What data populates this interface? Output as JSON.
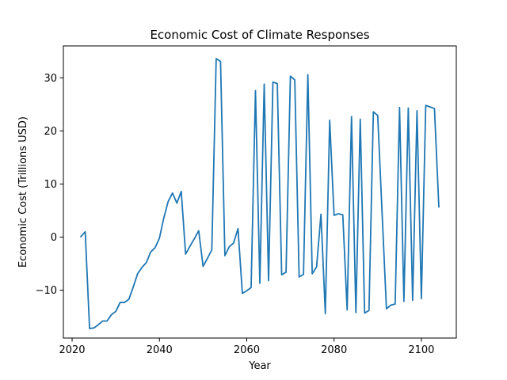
{
  "chart_data": {
    "type": "line",
    "title": "Economic Cost of Climate Responses",
    "xlabel": "Year",
    "ylabel": "Economic Cost (Trillions USD)",
    "xlim": [
      2018,
      2108
    ],
    "ylim": [
      -19,
      36
    ],
    "xticks": [
      2020,
      2040,
      2060,
      2080,
      2100
    ],
    "yticks": [
      -10,
      0,
      10,
      20,
      30
    ],
    "ytick_labels": [
      "−10",
      "0",
      "10",
      "20",
      "30"
    ],
    "grid": false,
    "line_color": "#1f77b4",
    "series": [
      {
        "x": [
          2022,
          2023,
          2024,
          2025,
          2026,
          2027,
          2028,
          2029,
          2030,
          2031,
          2032,
          2033,
          2034,
          2035,
          2036,
          2037,
          2038,
          2039,
          2040,
          2041,
          2042,
          2043,
          2044,
          2045,
          2046,
          2047,
          2048,
          2049,
          2050,
          2051,
          2052,
          2053,
          2054,
          2055,
          2056,
          2057,
          2058,
          2059,
          2060,
          2061,
          2062,
          2063,
          2064,
          2065,
          2066,
          2067,
          2068,
          2069,
          2070,
          2071,
          2072,
          2073,
          2074,
          2075,
          2076,
          2077,
          2078,
          2079,
          2080,
          2081,
          2082,
          2083,
          2084,
          2085,
          2086,
          2087,
          2088,
          2089,
          2090,
          2091,
          2092,
          2093,
          2094,
          2095,
          2096,
          2097,
          2098,
          2099,
          2100,
          2101,
          2102,
          2103,
          2104
        ],
        "y": [
          0.1,
          1.0,
          -17.2,
          -17.1,
          -16.5,
          -15.8,
          -15.8,
          -14.6,
          -14.0,
          -12.3,
          -12.3,
          -11.7,
          -9.4,
          -6.9,
          -5.7,
          -4.8,
          -2.8,
          -2.0,
          -0.2,
          3.6,
          6.7,
          8.3,
          6.4,
          8.6,
          -3.2,
          -1.7,
          -0.3,
          1.2,
          -5.5,
          -4.0,
          -2.4,
          33.6,
          33.1,
          -3.5,
          -1.8,
          -1.1,
          1.6,
          -10.6,
          -10.1,
          -9.5,
          27.6,
          -8.7,
          28.8,
          -8.2,
          29.2,
          28.9,
          -7.1,
          -6.6,
          30.3,
          29.6,
          -7.5,
          -7.0,
          30.6,
          -6.9,
          -5.6,
          4.3,
          -14.4,
          22.0,
          4.1,
          4.4,
          4.2,
          -13.7,
          22.7,
          -14.2,
          22.2,
          -14.3,
          -13.8,
          23.6,
          22.9,
          4.6,
          -13.5,
          -12.8,
          -12.6,
          24.4,
          -12.1,
          24.3,
          -11.9,
          23.8,
          -11.6,
          24.8,
          24.5,
          24.2,
          5.7
        ]
      }
    ]
  }
}
